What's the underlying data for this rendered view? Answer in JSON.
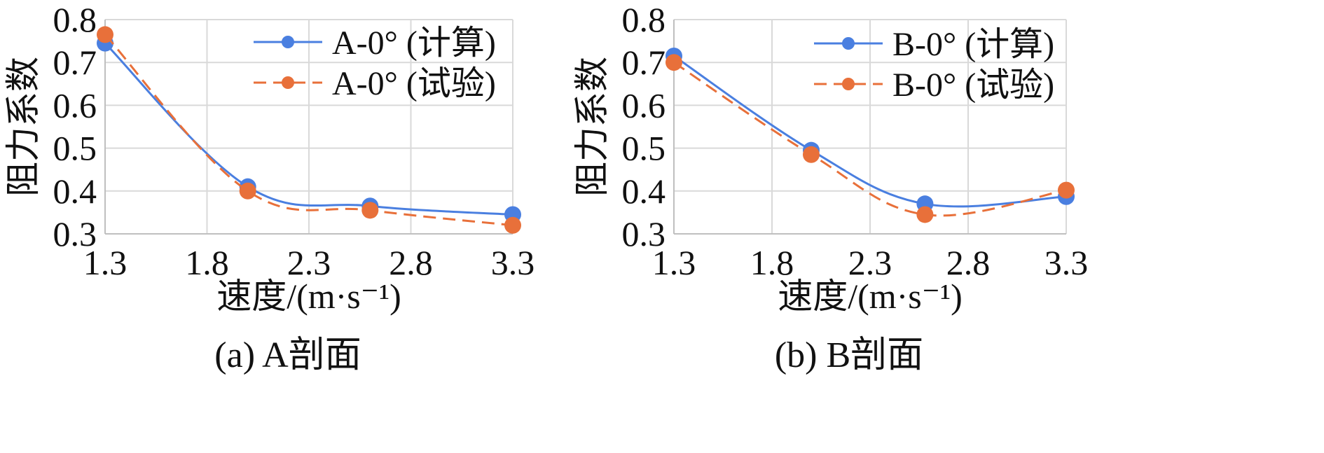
{
  "colors": {
    "calc": "#4a7fe0",
    "test": "#e8703a",
    "grid": "#d9d9d9",
    "axis": "#bfbfbf"
  },
  "chart_data": [
    {
      "type": "line",
      "caption": "(a) A剖面",
      "xlabel": "速度/(m·s⁻¹)",
      "ylabel": "阻力系数",
      "xlim": [
        1.3,
        3.3
      ],
      "ylim": [
        0.3,
        0.8
      ],
      "xticks": [
        "1.3",
        "1.8",
        "2.3",
        "2.8",
        "3.3"
      ],
      "yticks": [
        "0.3",
        "0.4",
        "0.5",
        "0.6",
        "0.7",
        "0.8"
      ],
      "grid": true,
      "legend_position": "top-right",
      "series": [
        {
          "name": "A-0° (计算)",
          "style": "solid",
          "x": [
            1.3,
            2.0,
            2.6,
            3.3
          ],
          "y": [
            0.745,
            0.41,
            0.365,
            0.345
          ]
        },
        {
          "name": "A-0° (试验)",
          "style": "dashed",
          "x": [
            1.3,
            2.0,
            2.6,
            3.3
          ],
          "y": [
            0.765,
            0.4,
            0.355,
            0.32
          ]
        }
      ]
    },
    {
      "type": "line",
      "caption": "(b) B剖面",
      "xlabel": "速度/(m·s⁻¹)",
      "ylabel": "阻力系数",
      "xlim": [
        1.3,
        3.3
      ],
      "ylim": [
        0.3,
        0.8
      ],
      "xticks": [
        "1.3",
        "1.8",
        "2.3",
        "2.8",
        "3.3"
      ],
      "yticks": [
        "0.3",
        "0.4",
        "0.5",
        "0.6",
        "0.7",
        "0.8"
      ],
      "grid": true,
      "legend_position": "top-right",
      "series": [
        {
          "name": "B-0° (计算)",
          "style": "solid",
          "x": [
            1.3,
            2.0,
            2.58,
            3.3
          ],
          "y": [
            0.715,
            0.495,
            0.37,
            0.387
          ]
        },
        {
          "name": "B-0° (试验)",
          "style": "dashed",
          "x": [
            1.3,
            2.0,
            2.58,
            3.3
          ],
          "y": [
            0.7,
            0.485,
            0.345,
            0.402
          ]
        }
      ]
    }
  ]
}
